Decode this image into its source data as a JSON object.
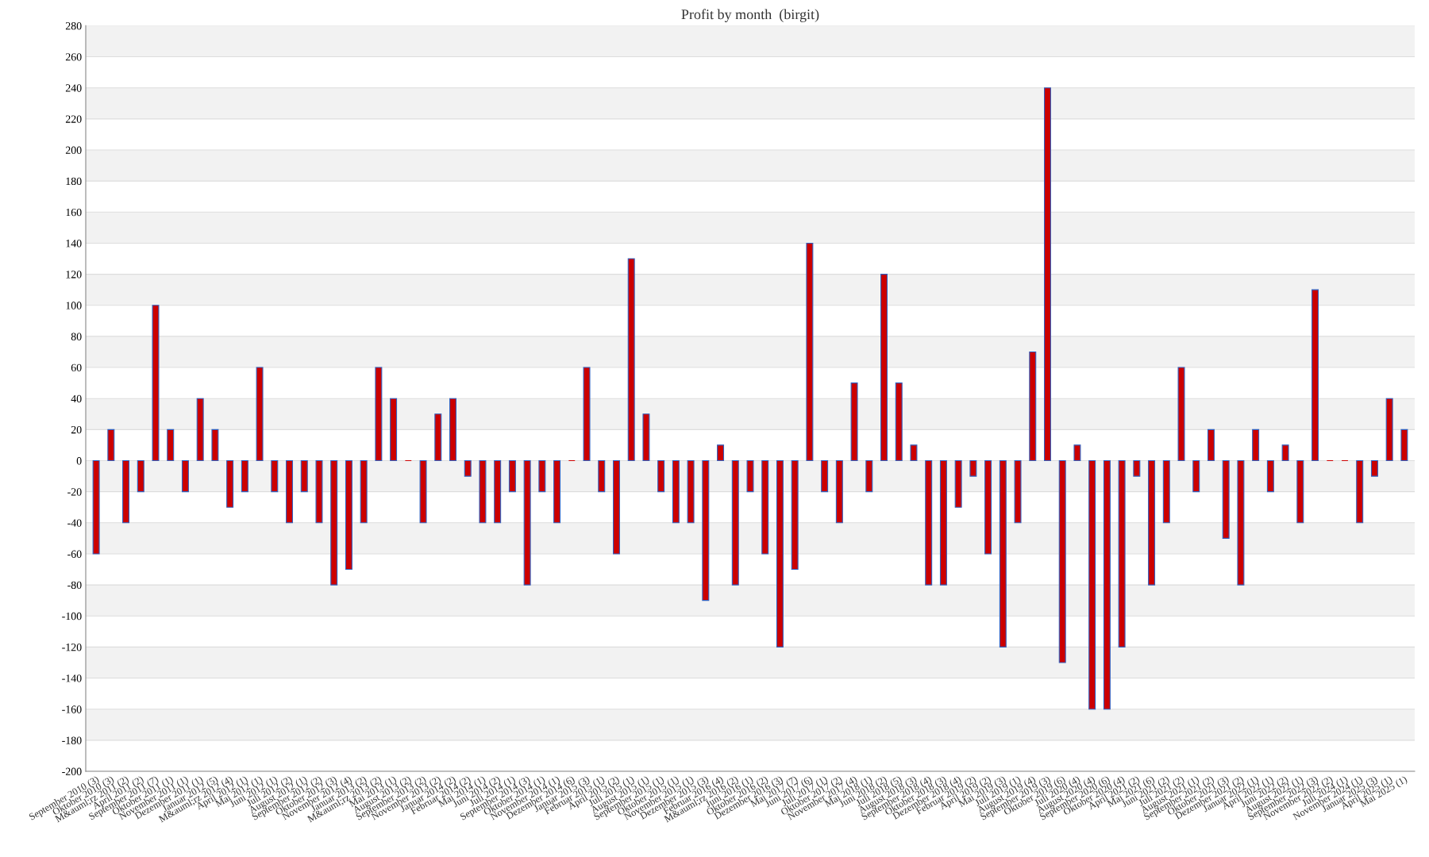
{
  "chart_data": {
    "type": "bar",
    "title": "Profit by month  (birgit)",
    "categories": [
      "September 2010 (3)",
      "Oktober 2010 (3)",
      "M&auml;rz 2011 (2)",
      "April 2011 (2)",
      "September 2011 (7)",
      "Oktober 2011 (1)",
      "November 2011 (1)",
      "Dezember 2011 (1)",
      "Januar 2012 (5)",
      "M&auml;rz 2012 (4)",
      "April 2012 (1)",
      "Mai 2012 (1)",
      "Juni 2012 (1)",
      "Juli 2012 (2)",
      "August 2012 (1)",
      "September 2012 (2)",
      "Oktober 2012 (3)",
      "November 2012 (4)",
      "Januar 2013 (2)",
      "M&auml;rz 2013 (2)",
      "Mai 2013 (1)",
      "August 2013 (2)",
      "September 2013 (2)",
      "November 2013 (2)",
      "Januar 2014 (2)",
      "Februar 2014 (2)",
      "Mai 2014 (1)",
      "Juni 2014 (2)",
      "Juli 2014 (1)",
      "September 2014 (3)",
      "Oktober 2014 (1)",
      "November 2014 (1)",
      "Dezember 2014 (6)",
      "Januar 2015 (3)",
      "Februar 2015 (1)",
      "April 2015 (2)",
      "Juli 2015 (1)",
      "August 2015 (1)",
      "September 2015 (1)",
      "Oktober 2015 (1)",
      "November 2015 (1)",
      "Dezember 2015 (3)",
      "Februar 2016 (4)",
      "M&auml;rz 2016 (2)",
      "Juni 2016 (1)",
      "Oktober 2016 (2)",
      "Dezember 2016 (3)",
      "Mai 2017 (7)",
      "Juni 2017 (6)",
      "Juli 2017 (1)",
      "Oktober 2017 (2)",
      "November 2017 (4)",
      "Mai 2018 (1)",
      "Juni 2018 (2)",
      "Juli 2018 (5)",
      "August 2018 (3)",
      "September 2018 (4)",
      "Oktober 2018 (3)",
      "Dezember 2018 (4)",
      "Februar 2019 (2)",
      "April 2019 (2)",
      "Mai 2019 (3)",
      "Juli 2019 (1)",
      "August 2019 (4)",
      "September 2019 (3)",
      "Oktober 2019 (6)",
      "Juli 2020 (4)",
      "August 2020 (4)",
      "September 2020 (6)",
      "Oktober 2020 (4)",
      "April 2021 (2)",
      "Mai 2021 (6)",
      "Juni 2021 (2)",
      "Juli 2021 (2)",
      "August 2021 (1)",
      "September 2021 (2)",
      "Oktober 2021 (3)",
      "Dezember 2021 (2)",
      "Januar 2022 (1)",
      "April 2022 (1)",
      "Juni 2022 (2)",
      "August 2022 (1)",
      "September 2022 (3)",
      "November 2022 (2)",
      "Juli 2024 (1)",
      "November 2024 (1)",
      "Januar 2025 (3)",
      "April 2025 (1)",
      "Mai 2025 (1)"
    ],
    "values": [
      -60,
      20,
      -40,
      -20,
      100,
      20,
      -20,
      40,
      20,
      -30,
      -20,
      60,
      -20,
      -40,
      -20,
      -40,
      -80,
      -70,
      -40,
      60,
      40,
      0,
      -40,
      30,
      40,
      -10,
      -40,
      -40,
      -20,
      -80,
      -20,
      -40,
      0,
      60,
      -20,
      -60,
      130,
      30,
      -20,
      -40,
      -40,
      -90,
      10,
      -80,
      -20,
      -60,
      -120,
      -70,
      140,
      -20,
      -40,
      50,
      -20,
      120,
      50,
      10,
      -80,
      -80,
      -30,
      -10,
      -60,
      -120,
      -40,
      70,
      240,
      -130,
      10,
      -160,
      -160,
      -120,
      -10,
      -80,
      -40,
      60,
      -20,
      20,
      -50,
      -80,
      20,
      -20,
      10,
      -40,
      110,
      0,
      0,
      -40,
      -10,
      40,
      20
    ],
    "color": "#cc0000",
    "ylim": [
      -200,
      280
    ],
    "yticks": [
      -200,
      -180,
      -160,
      -140,
      -120,
      -100,
      -80,
      -60,
      -40,
      -20,
      0,
      20,
      40,
      60,
      80,
      100,
      120,
      140,
      160,
      180,
      200,
      220,
      240,
      260,
      280
    ],
    "grid": "y"
  }
}
